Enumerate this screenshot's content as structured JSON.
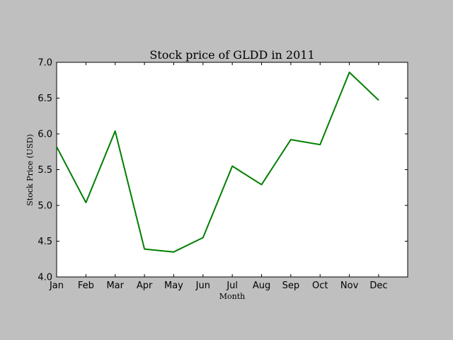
{
  "chart_data": {
    "type": "line",
    "title": "Stock price of GLDD in 2011",
    "xlabel": "Month",
    "ylabel": "Stock Price (USD)",
    "categories": [
      "Jan",
      "Feb",
      "Mar",
      "Apr",
      "May",
      "Jun",
      "Jul",
      "Aug",
      "Sep",
      "Oct",
      "Nov",
      "Dec"
    ],
    "series": [
      {
        "values": [
          5.82,
          5.04,
          6.04,
          4.39,
          4.35,
          4.55,
          5.55,
          5.29,
          5.92,
          5.85,
          6.86,
          6.47
        ],
        "color": "#007f00"
      }
    ],
    "ylim": [
      4.0,
      7.0
    ],
    "yticks": [
      "4.0",
      "4.5",
      "5.0",
      "5.5",
      "6.0",
      "6.5",
      "7.0"
    ],
    "grid": false,
    "legend": "none"
  }
}
